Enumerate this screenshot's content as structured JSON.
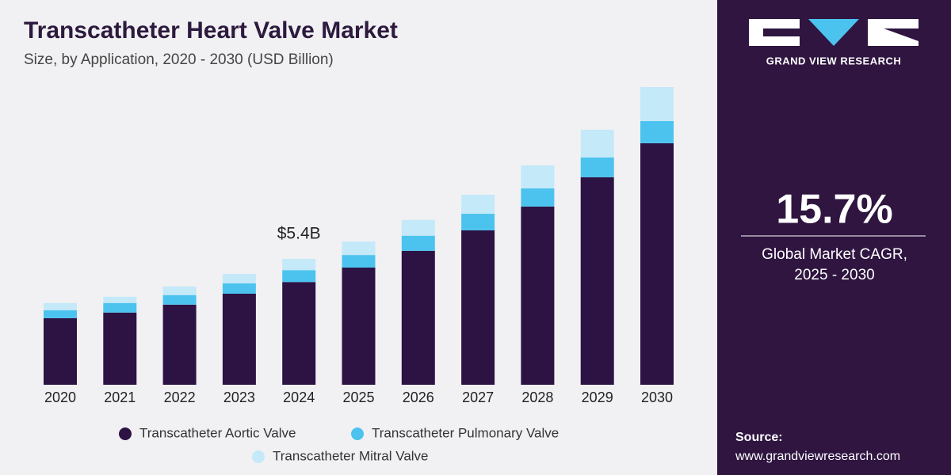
{
  "chart_data": {
    "type": "stacked_bar",
    "title": "Transcatheter Heart Valve Market",
    "subtitle": "Size, by Application, 2020 - 2030 (USD Billion)",
    "categories": [
      "2020",
      "2021",
      "2022",
      "2023",
      "2024",
      "2025",
      "2026",
      "2027",
      "2028",
      "2029",
      "2030"
    ],
    "series": [
      {
        "name": "Transcatheter Aortic Valve",
        "color": "#2d1244",
        "values": [
          2.86,
          3.1,
          3.44,
          3.91,
          4.41,
          5.03,
          5.75,
          6.63,
          7.65,
          8.91,
          10.37
        ]
      },
      {
        "name": "Transcatheter Pulmonary Valve",
        "color": "#4cc3ee",
        "values": [
          0.34,
          0.41,
          0.41,
          0.44,
          0.51,
          0.54,
          0.65,
          0.71,
          0.78,
          0.85,
          0.95
        ]
      },
      {
        "name": "Transcatheter Mitral Valve",
        "color": "#c4e9f8",
        "values": [
          0.31,
          0.27,
          0.37,
          0.41,
          0.48,
          0.58,
          0.68,
          0.82,
          0.99,
          1.19,
          1.46
        ]
      }
    ],
    "annotations": [
      {
        "text": "$5.4B",
        "x": "2024",
        "value": 5.4
      }
    ]
  },
  "sidebar": {
    "brand": "GRAND VIEW RESEARCH",
    "cagr": "15.7%",
    "cagr_label": "Global Market CAGR,",
    "cagr_period": "2025 - 2030",
    "source_label": "Source:",
    "source_url": "www.grandviewresearch.com"
  }
}
